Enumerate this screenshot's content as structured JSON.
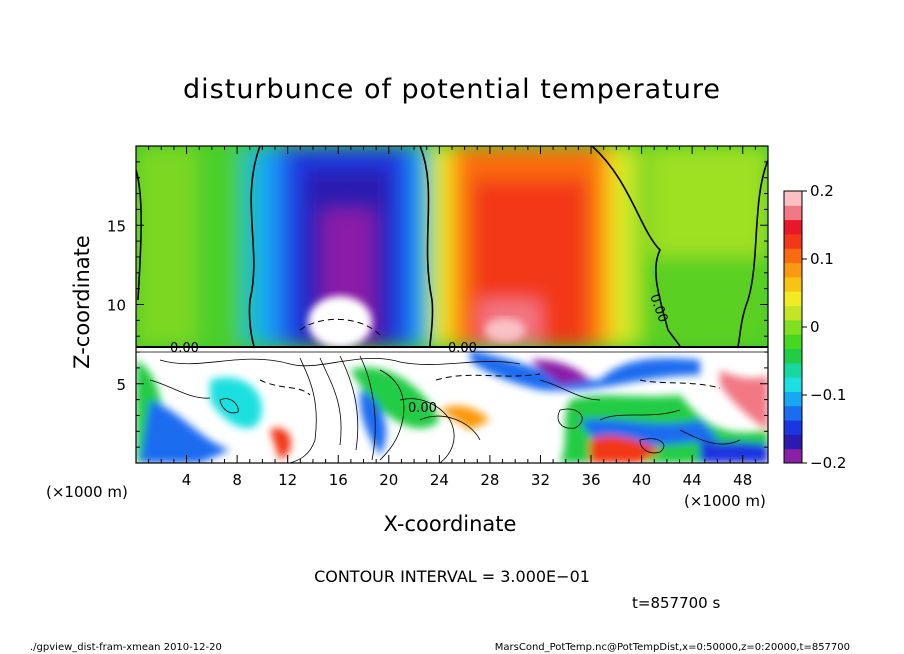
{
  "chart_data": {
    "type": "heatmap",
    "title": "disturbunce of potential temperature",
    "xlabel": "X-coordinate",
    "ylabel": "Z-coordinate",
    "x_unit_left": "(×1000 m)",
    "x_unit_right": "(×1000 m)",
    "xlim": [
      0,
      50
    ],
    "ylim": [
      0,
      20
    ],
    "x_ticks": [
      4,
      8,
      12,
      16,
      20,
      24,
      28,
      32,
      36,
      40,
      44,
      48
    ],
    "y_ticks": [
      5,
      10,
      15
    ],
    "colorbar": {
      "range": [
        -0.2,
        0.2
      ],
      "ticks": [
        0.2,
        0.1,
        0,
        -0.1,
        -0.2
      ],
      "tick_labels": [
        "0.2",
        "0.1",
        "0",
        "−0.1",
        "−0.2"
      ],
      "colors": [
        "#8a1fa8",
        "#2b1ab0",
        "#1b36e0",
        "#1a6cf0",
        "#16a8f5",
        "#1ce0e0",
        "#18d8a0",
        "#22cc44",
        "#46d81e",
        "#7ee020",
        "#c2e626",
        "#f2ea22",
        "#f8c414",
        "#fa9a10",
        "#fa6a10",
        "#f23818",
        "#e8182a",
        "#f27884",
        "#fac0c4"
      ]
    },
    "contour_values_labeled": [
      "0.00",
      "0.00",
      "0.00",
      "0.00"
    ],
    "features": [
      {
        "name": "cold anomaly",
        "x_range": [
          11,
          22
        ],
        "z_range": [
          7.5,
          20
        ],
        "min": -0.2
      },
      {
        "name": "warm anomaly",
        "x_range": [
          25,
          36
        ],
        "z_range": [
          7.5,
          20
        ],
        "max": 0.2
      }
    ]
  },
  "contour_interval": "CONTOUR INTERVAL = 3.000E−01",
  "time_label": "t=857700 s",
  "footer_left": "./gpview_dist-fram-xmean   2010-12-20",
  "footer_right": "MarsCond_PotTemp.nc@PotTempDist,x=0:50000,z=0:20000,t=857700"
}
